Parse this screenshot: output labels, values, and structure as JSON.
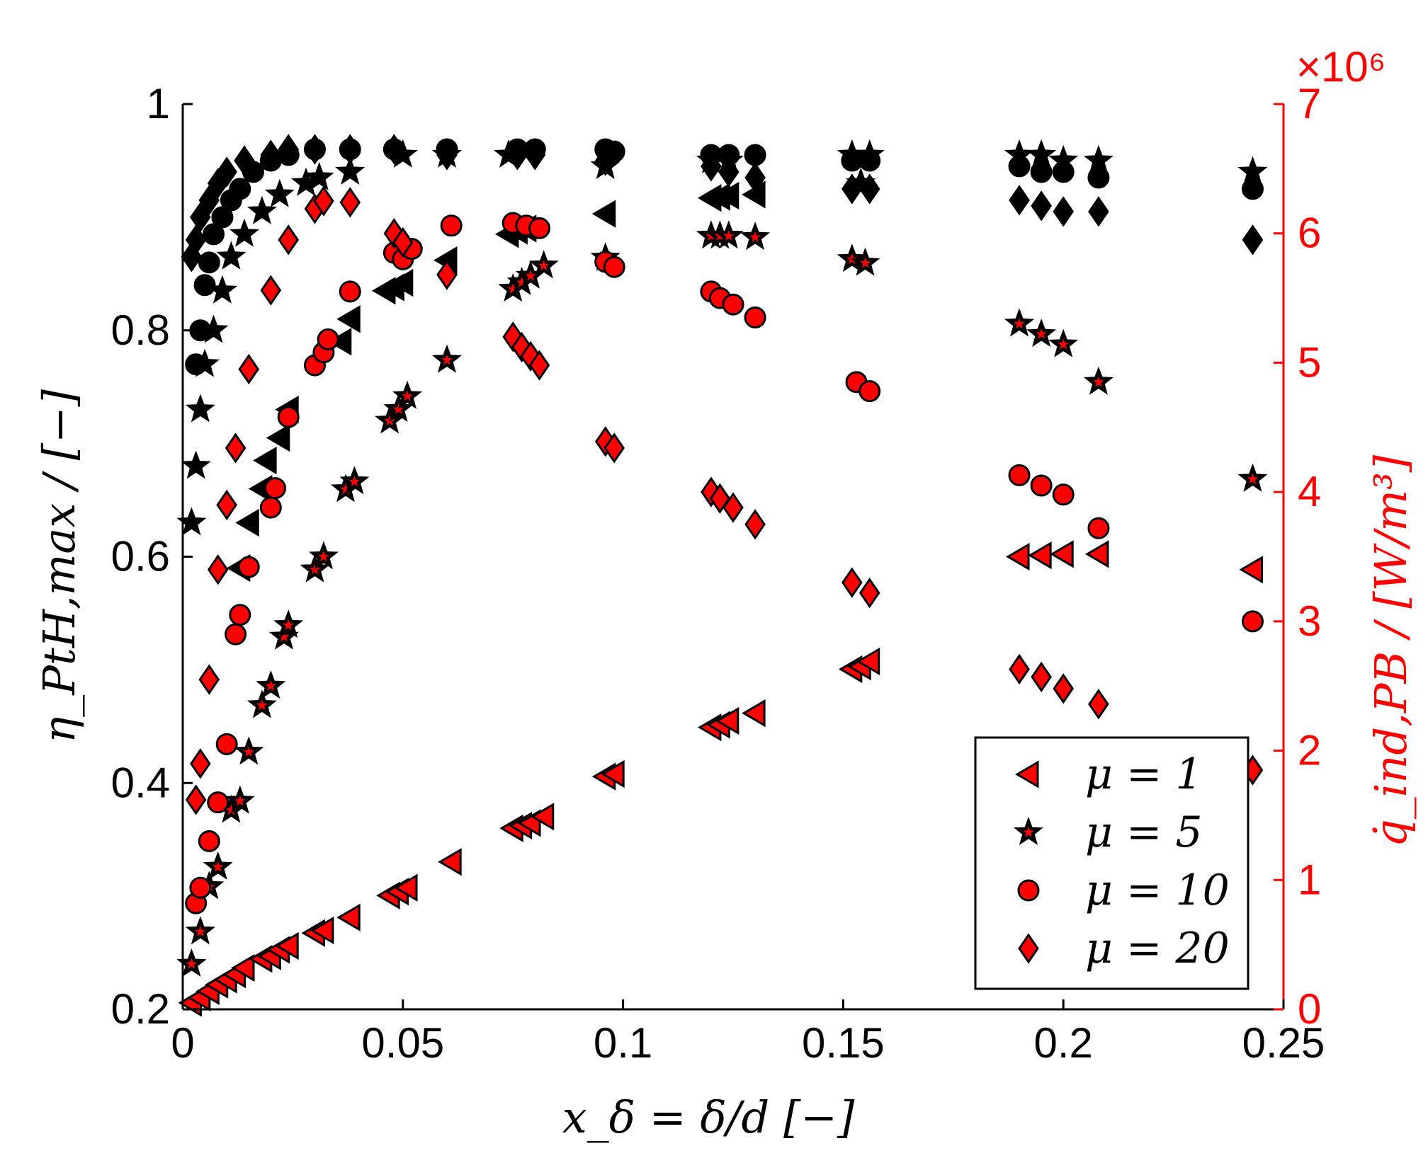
{
  "chart_data": {
    "type": "scatter",
    "title": "",
    "xlabel": "x_δ = δ/d [−]",
    "ylabel_left": "η_PtH,max / [−]",
    "ylabel_right": "q̇_ind,PB / [W/m³]",
    "xlim": [
      0,
      0.25
    ],
    "ylim_left": [
      0.2,
      1.0
    ],
    "ylim_right": [
      0,
      7
    ],
    "right_exponent": "×10⁶",
    "xticks": [
      "0",
      "0.05",
      "0.1",
      "0.15",
      "0.2",
      "0.25"
    ],
    "yticks_left": [
      "0.2",
      "0.4",
      "0.6",
      "0.8",
      "1"
    ],
    "yticks_right": [
      "0",
      "1",
      "2",
      "3",
      "4",
      "5",
      "6",
      "7"
    ],
    "grid": false,
    "legend_position": "bottom-right",
    "colors": {
      "left_axis": "#000000",
      "right_axis": "#ff0000",
      "marker_fill_eta": "#000000",
      "marker_fill_q": "#ff0000",
      "marker_edge": "#000000"
    },
    "series": [
      {
        "name": "μ = 1",
        "marker": "triangle-left",
        "eta": [
          [
            0.046,
            0.835
          ],
          [
            0.048,
            0.838
          ],
          [
            0.05,
            0.842
          ],
          [
            0.06,
            0.862
          ],
          [
            0.096,
            0.903
          ],
          [
            0.12,
            0.917
          ],
          [
            0.122,
            0.918
          ],
          [
            0.124,
            0.919
          ],
          [
            0.13,
            0.92
          ],
          [
            0.013,
            0.59
          ],
          [
            0.015,
            0.63
          ],
          [
            0.018,
            0.66
          ],
          [
            0.019,
            0.685
          ],
          [
            0.022,
            0.705
          ],
          [
            0.024,
            0.73
          ],
          [
            0.036,
            0.79
          ],
          [
            0.038,
            0.81
          ],
          [
            0.074,
            0.885
          ],
          [
            0.076,
            0.888
          ],
          [
            0.078,
            0.89
          ]
        ],
        "q": [
          [
            0.002,
            0.05
          ],
          [
            0.004,
            0.09
          ],
          [
            0.006,
            0.14
          ],
          [
            0.008,
            0.19
          ],
          [
            0.01,
            0.23
          ],
          [
            0.012,
            0.27
          ],
          [
            0.014,
            0.32
          ],
          [
            0.018,
            0.39
          ],
          [
            0.02,
            0.41
          ],
          [
            0.022,
            0.46
          ],
          [
            0.024,
            0.49
          ],
          [
            0.03,
            0.59
          ],
          [
            0.032,
            0.61
          ],
          [
            0.038,
            0.71
          ],
          [
            0.047,
            0.88
          ],
          [
            0.049,
            0.91
          ],
          [
            0.051,
            0.94
          ],
          [
            0.061,
            1.14
          ],
          [
            0.075,
            1.4
          ],
          [
            0.077,
            1.42
          ],
          [
            0.079,
            1.44
          ],
          [
            0.082,
            1.49
          ],
          [
            0.096,
            1.8
          ],
          [
            0.098,
            1.82
          ],
          [
            0.12,
            2.18
          ],
          [
            0.122,
            2.2
          ],
          [
            0.124,
            2.23
          ],
          [
            0.13,
            2.29
          ],
          [
            0.152,
            2.63
          ],
          [
            0.154,
            2.65
          ],
          [
            0.156,
            2.69
          ],
          [
            0.19,
            3.5
          ],
          [
            0.195,
            3.51
          ],
          [
            0.2,
            3.52
          ],
          [
            0.208,
            3.52
          ],
          [
            0.243,
            3.4
          ]
        ]
      },
      {
        "name": "μ = 5",
        "marker": "star",
        "eta": [
          [
            0.002,
            0.63
          ],
          [
            0.003,
            0.68
          ],
          [
            0.004,
            0.73
          ],
          [
            0.005,
            0.77
          ],
          [
            0.007,
            0.8
          ],
          [
            0.009,
            0.835
          ],
          [
            0.011,
            0.865
          ],
          [
            0.014,
            0.885
          ],
          [
            0.018,
            0.905
          ],
          [
            0.022,
            0.92
          ],
          [
            0.028,
            0.93
          ],
          [
            0.031,
            0.935
          ],
          [
            0.038,
            0.94
          ],
          [
            0.05,
            0.955
          ],
          [
            0.06,
            0.955
          ],
          [
            0.074,
            0.955
          ],
          [
            0.096,
            0.945
          ],
          [
            0.12,
            0.95
          ],
          [
            0.124,
            0.95
          ],
          [
            0.152,
            0.955
          ],
          [
            0.156,
            0.955
          ],
          [
            0.154,
            0.93
          ],
          [
            0.19,
            0.955
          ],
          [
            0.195,
            0.955
          ],
          [
            0.2,
            0.95
          ],
          [
            0.208,
            0.95
          ],
          [
            0.243,
            0.94
          ]
        ],
        "q": [
          [
            0.002,
            0.35
          ],
          [
            0.004,
            0.6
          ],
          [
            0.006,
            0.95
          ],
          [
            0.008,
            1.1
          ],
          [
            0.011,
            1.54
          ],
          [
            0.013,
            1.61
          ],
          [
            0.015,
            1.99
          ],
          [
            0.018,
            2.35
          ],
          [
            0.02,
            2.5
          ],
          [
            0.023,
            2.88
          ],
          [
            0.024,
            2.97
          ],
          [
            0.03,
            3.4
          ],
          [
            0.032,
            3.5
          ],
          [
            0.037,
            4.02
          ],
          [
            0.039,
            4.08
          ],
          [
            0.047,
            4.55
          ],
          [
            0.049,
            4.64
          ],
          [
            0.051,
            4.74
          ],
          [
            0.06,
            5.02
          ],
          [
            0.075,
            5.57
          ],
          [
            0.077,
            5.62
          ],
          [
            0.079,
            5.67
          ],
          [
            0.082,
            5.75
          ],
          [
            0.096,
            5.81
          ],
          [
            0.12,
            5.98
          ],
          [
            0.122,
            5.98
          ],
          [
            0.124,
            5.98
          ],
          [
            0.13,
            5.97
          ],
          [
            0.152,
            5.8
          ],
          [
            0.155,
            5.77
          ],
          [
            0.19,
            5.3
          ],
          [
            0.195,
            5.22
          ],
          [
            0.2,
            5.14
          ],
          [
            0.208,
            4.85
          ],
          [
            0.243,
            4.1
          ]
        ]
      },
      {
        "name": "μ = 10",
        "marker": "circle",
        "eta": [
          [
            0.003,
            0.77
          ],
          [
            0.004,
            0.8
          ],
          [
            0.005,
            0.84
          ],
          [
            0.006,
            0.86
          ],
          [
            0.007,
            0.885
          ],
          [
            0.009,
            0.9
          ],
          [
            0.011,
            0.915
          ],
          [
            0.013,
            0.925
          ],
          [
            0.016,
            0.94
          ],
          [
            0.02,
            0.95
          ],
          [
            0.024,
            0.955
          ],
          [
            0.03,
            0.96
          ],
          [
            0.038,
            0.96
          ],
          [
            0.048,
            0.96
          ],
          [
            0.06,
            0.96
          ],
          [
            0.076,
            0.96
          ],
          [
            0.08,
            0.96
          ],
          [
            0.096,
            0.96
          ],
          [
            0.098,
            0.958
          ],
          [
            0.12,
            0.955
          ],
          [
            0.124,
            0.955
          ],
          [
            0.13,
            0.955
          ],
          [
            0.152,
            0.95
          ],
          [
            0.156,
            0.95
          ],
          [
            0.19,
            0.945
          ],
          [
            0.195,
            0.94
          ],
          [
            0.2,
            0.94
          ],
          [
            0.208,
            0.935
          ],
          [
            0.243,
            0.925
          ]
        ],
        "q": [
          [
            0.003,
            0.82
          ],
          [
            0.004,
            0.94
          ],
          [
            0.006,
            1.3
          ],
          [
            0.008,
            1.6
          ],
          [
            0.01,
            2.05
          ],
          [
            0.012,
            2.9
          ],
          [
            0.013,
            3.05
          ],
          [
            0.015,
            3.42
          ],
          [
            0.02,
            3.88
          ],
          [
            0.021,
            4.03
          ],
          [
            0.024,
            4.58
          ],
          [
            0.03,
            4.98
          ],
          [
            0.032,
            5.08
          ],
          [
            0.033,
            5.18
          ],
          [
            0.038,
            5.55
          ],
          [
            0.048,
            5.85
          ],
          [
            0.05,
            5.8
          ],
          [
            0.052,
            5.88
          ],
          [
            0.061,
            6.06
          ],
          [
            0.075,
            6.08
          ],
          [
            0.078,
            6.06
          ],
          [
            0.081,
            6.04
          ],
          [
            0.096,
            5.78
          ],
          [
            0.098,
            5.74
          ],
          [
            0.12,
            5.55
          ],
          [
            0.122,
            5.5
          ],
          [
            0.125,
            5.45
          ],
          [
            0.13,
            5.35
          ],
          [
            0.153,
            4.85
          ],
          [
            0.156,
            4.78
          ],
          [
            0.19,
            4.13
          ],
          [
            0.195,
            4.05
          ],
          [
            0.2,
            3.98
          ],
          [
            0.208,
            3.72
          ],
          [
            0.243,
            3.0
          ]
        ]
      },
      {
        "name": "μ = 20",
        "marker": "diamond",
        "eta": [
          [
            0.002,
            0.865
          ],
          [
            0.003,
            0.88
          ],
          [
            0.004,
            0.9
          ],
          [
            0.006,
            0.915
          ],
          [
            0.008,
            0.93
          ],
          [
            0.01,
            0.94
          ],
          [
            0.014,
            0.95
          ],
          [
            0.02,
            0.955
          ],
          [
            0.024,
            0.96
          ],
          [
            0.03,
            0.96
          ],
          [
            0.038,
            0.96
          ],
          [
            0.048,
            0.96
          ],
          [
            0.06,
            0.955
          ],
          [
            0.076,
            0.955
          ],
          [
            0.08,
            0.955
          ],
          [
            0.096,
            0.95
          ],
          [
            0.12,
            0.945
          ],
          [
            0.124,
            0.94
          ],
          [
            0.13,
            0.935
          ],
          [
            0.152,
            0.925
          ],
          [
            0.156,
            0.925
          ],
          [
            0.19,
            0.915
          ],
          [
            0.195,
            0.91
          ],
          [
            0.2,
            0.905
          ],
          [
            0.208,
            0.905
          ],
          [
            0.243,
            0.88
          ]
        ],
        "q": [
          [
            0.003,
            1.62
          ],
          [
            0.004,
            1.9
          ],
          [
            0.006,
            2.55
          ],
          [
            0.008,
            3.4
          ],
          [
            0.01,
            3.9
          ],
          [
            0.012,
            4.34
          ],
          [
            0.015,
            4.95
          ],
          [
            0.02,
            5.56
          ],
          [
            0.024,
            5.95
          ],
          [
            0.03,
            6.19
          ],
          [
            0.032,
            6.25
          ],
          [
            0.038,
            6.24
          ],
          [
            0.048,
            6.0
          ],
          [
            0.05,
            5.93
          ],
          [
            0.06,
            5.68
          ],
          [
            0.075,
            5.2
          ],
          [
            0.077,
            5.12
          ],
          [
            0.079,
            5.05
          ],
          [
            0.081,
            4.98
          ],
          [
            0.096,
            4.39
          ],
          [
            0.098,
            4.34
          ],
          [
            0.12,
            4.0
          ],
          [
            0.122,
            3.95
          ],
          [
            0.125,
            3.88
          ],
          [
            0.13,
            3.75
          ],
          [
            0.152,
            3.3
          ],
          [
            0.156,
            3.22
          ],
          [
            0.19,
            2.63
          ],
          [
            0.195,
            2.57
          ],
          [
            0.2,
            2.48
          ],
          [
            0.208,
            2.36
          ],
          [
            0.243,
            1.85
          ]
        ]
      }
    ]
  }
}
